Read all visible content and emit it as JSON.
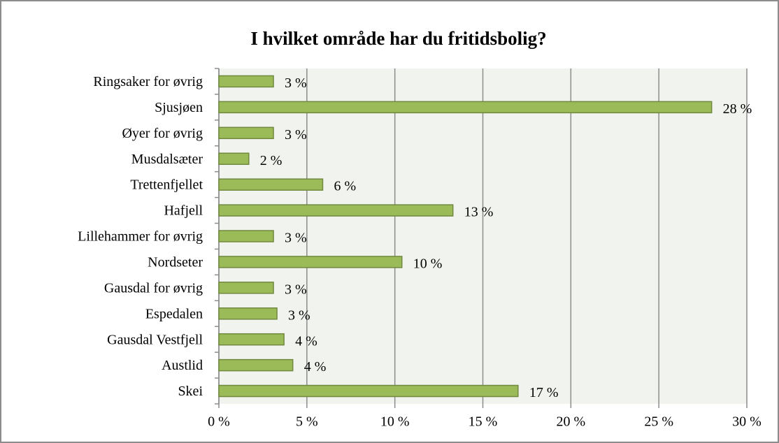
{
  "chart_data": {
    "type": "barh",
    "title": "I hvilket område har du fritidsbolig?",
    "categories": [
      "Ringsaker for øvrig",
      "Sjusjøen",
      "Øyer for øvrig",
      "Musdalsæter",
      "Trettenfjellet",
      "Hafjell",
      "Lillehammer for øvrig",
      "Nordseter",
      "Gausdal for øvrig",
      "Espedalen",
      "Gausdal Vestfjell",
      "Austlid",
      "Skei"
    ],
    "values": [
      3.1,
      28.0,
      3.1,
      1.7,
      5.9,
      13.3,
      3.1,
      10.4,
      3.1,
      3.3,
      3.7,
      4.2,
      17.0
    ],
    "value_labels": [
      "3 %",
      "28 %",
      "3 %",
      "2 %",
      "6 %",
      "13 %",
      "3 %",
      "10 %",
      "3 %",
      "3 %",
      "4 %",
      "4 %",
      "17 %"
    ],
    "color": "#9bbb59",
    "xlim": [
      0,
      30
    ],
    "xticks": [
      {
        "value": 0,
        "label": "0 %"
      },
      {
        "value": 5,
        "label": "5 %"
      },
      {
        "value": 10,
        "label": "10 %"
      },
      {
        "value": 15,
        "label": "15 %"
      },
      {
        "value": 20,
        "label": "20 %"
      },
      {
        "value": 25,
        "label": "25 %"
      },
      {
        "value": 30,
        "label": "30 %"
      }
    ],
    "grid": true
  }
}
